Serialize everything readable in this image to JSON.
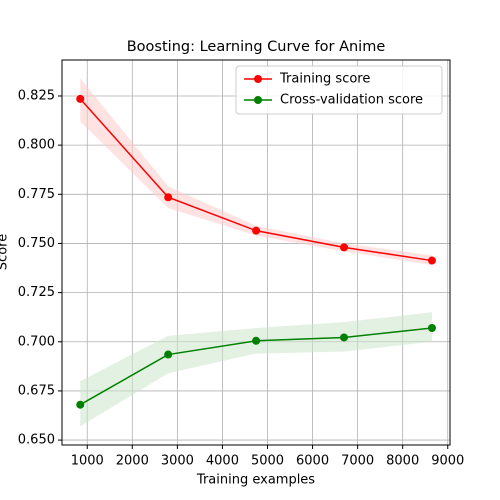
{
  "chart_data": {
    "type": "line",
    "title": "Boosting: Learning Curve for Anime",
    "x_label": "Training examples",
    "y_label": "Score",
    "x": [
      845,
      2796,
      4747,
      6698,
      8650
    ],
    "series": [
      {
        "name": "Training score",
        "color": "#ff0000",
        "band_color": "#ffcccc",
        "values": [
          0.8235,
          0.7735,
          0.7565,
          0.748,
          0.7413
        ],
        "upper": [
          0.834,
          0.779,
          0.759,
          0.75,
          0.744
        ],
        "lower": [
          0.812,
          0.768,
          0.754,
          0.746,
          0.739
        ]
      },
      {
        "name": "Cross-validation score",
        "color": "#008000",
        "band_color": "#cce6cc",
        "values": [
          0.668,
          0.6935,
          0.7005,
          0.7022,
          0.707
        ],
        "upper": [
          0.68,
          0.703,
          0.707,
          0.71,
          0.715
        ],
        "lower": [
          0.657,
          0.684,
          0.694,
          0.695,
          0.7
        ]
      }
    ],
    "xlim": [
      440,
      9050
    ],
    "ylim": [
      0.6475,
      0.8433
    ],
    "xticks": [
      1000,
      2000,
      3000,
      4000,
      5000,
      6000,
      7000,
      8000,
      9000
    ],
    "yticks": [
      {
        "value": 0.65,
        "label": "0.650"
      },
      0.675,
      {
        "value": 0.7,
        "label": "0.700"
      },
      0.725,
      {
        "value": 0.75,
        "label": "0.750"
      },
      0.775,
      {
        "value": 0.8,
        "label": "0.800"
      },
      0.825
    ],
    "grid": true,
    "legend": "upper right"
  }
}
